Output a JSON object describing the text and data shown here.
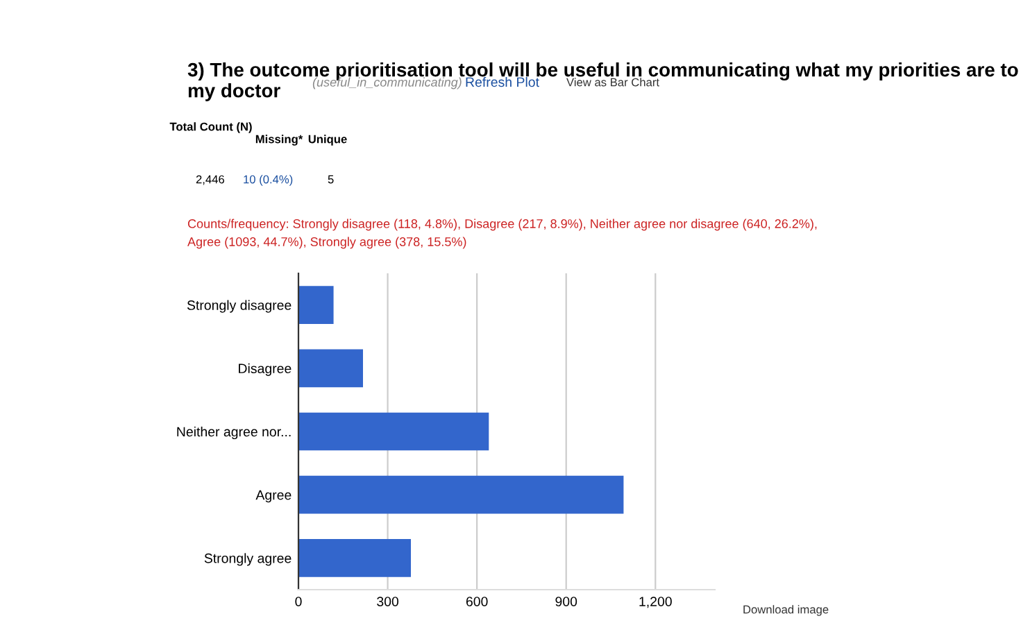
{
  "chart_data": {
    "type": "bar",
    "orientation": "horizontal",
    "title": "3) The outcome prioritisation tool will be useful in communicating what my priorities are to my doctor",
    "subtitle": "(useful_in_communicating)",
    "annotations": [
      "Refresh Plot",
      "View as Bar Chart",
      "Total Count (N)",
      "Missing*",
      "Unique",
      "2,446",
      "10 (0.4%)",
      "5",
      "Counts/frequency: Strongly disagree (118, 4.8%), Disagree (217, 8.9%), Neither agree nor disagree (640, 26.2%),",
      "Agree (1093, 44.7%), Strongly agree (378, 15.5%)",
      "Download image"
    ],
    "categories": [
      "Strongly disagree",
      "Disagree",
      "Neither agree nor...",
      "Agree",
      "Strongly agree"
    ],
    "values": [
      118,
      217,
      640,
      1093,
      378
    ],
    "color": "#3366cc",
    "xlim": [
      0,
      1400
    ],
    "xticks": [
      0,
      300,
      600,
      900,
      {
        "value": 1200,
        "label": "1,200"
      }
    ],
    "grid": "x",
    "legend": false
  }
}
